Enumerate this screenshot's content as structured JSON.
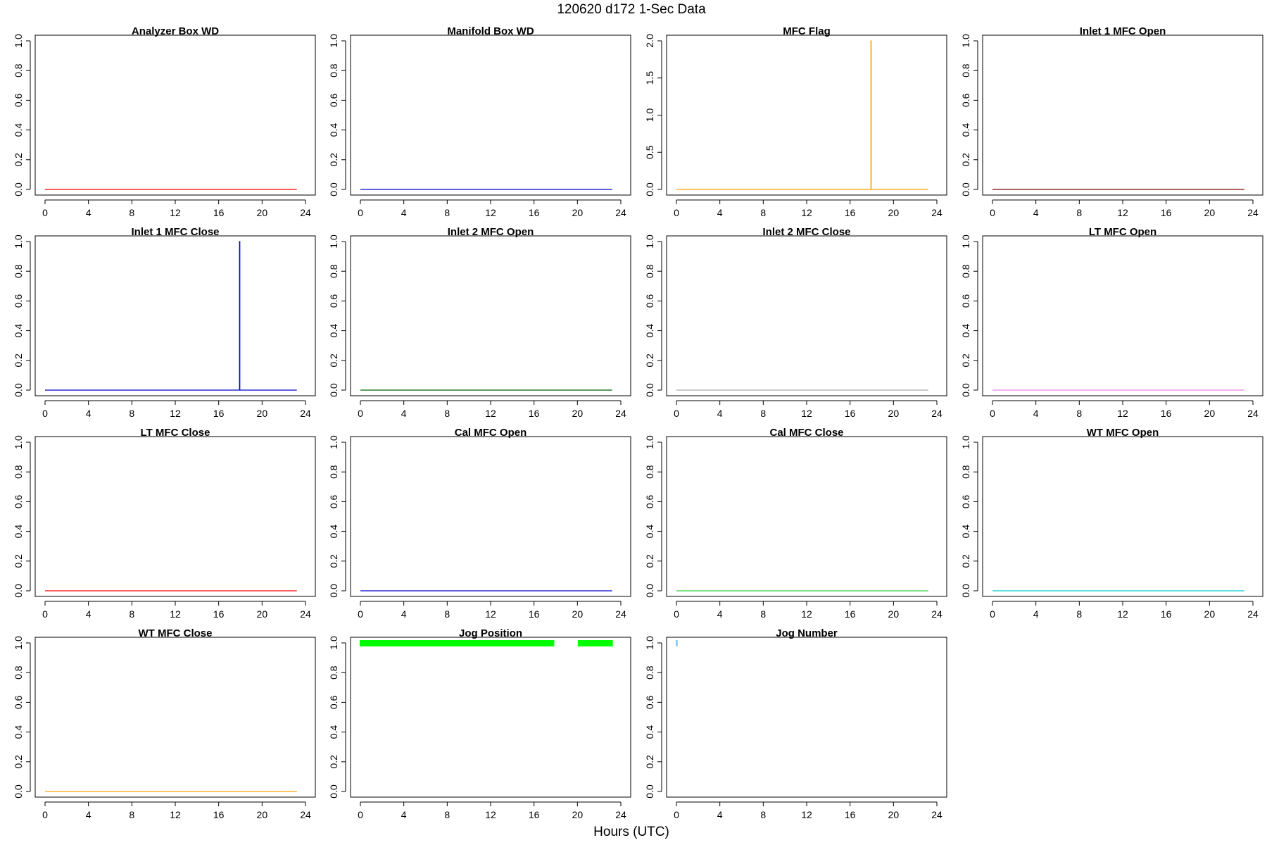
{
  "page": {
    "title": "120620   d172   1-Sec Data",
    "xlabel": "Hours (UTC)"
  },
  "chart_data": [
    {
      "type": "line",
      "title": "Analyzer Box WD",
      "color": "#ff0000",
      "xlim": [
        0,
        24
      ],
      "ylim": [
        0,
        1
      ],
      "xticks": [
        0,
        4,
        8,
        12,
        16,
        20,
        24
      ],
      "yticks": [
        0.0,
        0.2,
        0.4,
        0.6,
        0.8,
        1.0
      ],
      "series": [
        {
          "x": [
            0,
            23.2
          ],
          "y": [
            0,
            0
          ]
        }
      ]
    },
    {
      "type": "line",
      "title": "Manifold Box WD",
      "color": "#0000cd",
      "xlim": [
        0,
        24
      ],
      "ylim": [
        0,
        1
      ],
      "xticks": [
        0,
        4,
        8,
        12,
        16,
        20,
        24
      ],
      "yticks": [
        0.0,
        0.2,
        0.4,
        0.6,
        0.8,
        1.0
      ],
      "series": [
        {
          "x": [
            0,
            23.2
          ],
          "y": [
            0,
            0
          ]
        }
      ]
    },
    {
      "type": "line",
      "title": "MFC Flag",
      "color": "#ffa500",
      "xlim": [
        0,
        24
      ],
      "ylim": [
        0,
        2
      ],
      "xticks": [
        0,
        4,
        8,
        12,
        16,
        20,
        24
      ],
      "yticks": [
        0.0,
        0.5,
        1.0,
        1.5,
        2.0
      ],
      "series": [
        {
          "x": [
            0,
            17.92,
            17.92,
            17.95,
            17.95,
            23.2
          ],
          "y": [
            0,
            0,
            2,
            2,
            0,
            0
          ]
        }
      ]
    },
    {
      "type": "line",
      "title": "Inlet 1 MFC Open",
      "color": "#8b0000",
      "xlim": [
        0,
        24
      ],
      "ylim": [
        0,
        1
      ],
      "xticks": [
        0,
        4,
        8,
        12,
        16,
        20,
        24
      ],
      "yticks": [
        0.0,
        0.2,
        0.4,
        0.6,
        0.8,
        1.0
      ],
      "series": [
        {
          "x": [
            0,
            23.2
          ],
          "y": [
            0,
            0
          ]
        }
      ]
    },
    {
      "type": "line",
      "title": "Inlet 1 MFC Close",
      "color": "#0000cd",
      "xlim": [
        0,
        24
      ],
      "ylim": [
        0,
        1
      ],
      "xticks": [
        0,
        4,
        8,
        12,
        16,
        20,
        24
      ],
      "yticks": [
        0.0,
        0.2,
        0.4,
        0.6,
        0.8,
        1.0
      ],
      "series": [
        {
          "x": [
            0,
            17.92,
            17.92,
            17.95,
            17.95,
            23.2
          ],
          "y": [
            0,
            0,
            1,
            1,
            0,
            0
          ]
        }
      ]
    },
    {
      "type": "line",
      "title": "Inlet 2 MFC Open",
      "color": "#006400",
      "xlim": [
        0,
        24
      ],
      "ylim": [
        0,
        1
      ],
      "xticks": [
        0,
        4,
        8,
        12,
        16,
        20,
        24
      ],
      "yticks": [
        0.0,
        0.2,
        0.4,
        0.6,
        0.8,
        1.0
      ],
      "series": [
        {
          "x": [
            0,
            23.2
          ],
          "y": [
            0,
            0
          ]
        }
      ]
    },
    {
      "type": "line",
      "title": "Inlet 2 MFC Close",
      "color": "#a9a9a9",
      "xlim": [
        0,
        24
      ],
      "ylim": [
        0,
        1
      ],
      "xticks": [
        0,
        4,
        8,
        12,
        16,
        20,
        24
      ],
      "yticks": [
        0.0,
        0.2,
        0.4,
        0.6,
        0.8,
        1.0
      ],
      "series": [
        {
          "x": [
            0,
            23.2
          ],
          "y": [
            0,
            0
          ]
        }
      ]
    },
    {
      "type": "line",
      "title": "LT MFC Open",
      "color": "#ee82ee",
      "xlim": [
        0,
        24
      ],
      "ylim": [
        0,
        1
      ],
      "xticks": [
        0,
        4,
        8,
        12,
        16,
        20,
        24
      ],
      "yticks": [
        0.0,
        0.2,
        0.4,
        0.6,
        0.8,
        1.0
      ],
      "series": [
        {
          "x": [
            0,
            23.2
          ],
          "y": [
            0,
            0
          ]
        }
      ]
    },
    {
      "type": "line",
      "title": "LT MFC Close",
      "color": "#ff0000",
      "xlim": [
        0,
        24
      ],
      "ylim": [
        0,
        1
      ],
      "xticks": [
        0,
        4,
        8,
        12,
        16,
        20,
        24
      ],
      "yticks": [
        0.0,
        0.2,
        0.4,
        0.6,
        0.8,
        1.0
      ],
      "series": [
        {
          "x": [
            0,
            23.2
          ],
          "y": [
            0,
            0
          ]
        }
      ]
    },
    {
      "type": "line",
      "title": "Cal MFC Open",
      "color": "#0000cd",
      "xlim": [
        0,
        24
      ],
      "ylim": [
        0,
        1
      ],
      "xticks": [
        0,
        4,
        8,
        12,
        16,
        20,
        24
      ],
      "yticks": [
        0.0,
        0.2,
        0.4,
        0.6,
        0.8,
        1.0
      ],
      "series": [
        {
          "x": [
            0,
            23.2
          ],
          "y": [
            0,
            0
          ]
        }
      ]
    },
    {
      "type": "line",
      "title": "Cal MFC Close",
      "color": "#32cd32",
      "xlim": [
        0,
        24
      ],
      "ylim": [
        0,
        1
      ],
      "xticks": [
        0,
        4,
        8,
        12,
        16,
        20,
        24
      ],
      "yticks": [
        0.0,
        0.2,
        0.4,
        0.6,
        0.8,
        1.0
      ],
      "series": [
        {
          "x": [
            0,
            23.2
          ],
          "y": [
            0,
            0
          ]
        }
      ]
    },
    {
      "type": "line",
      "title": "WT MFC Open",
      "color": "#00ced1",
      "xlim": [
        0,
        24
      ],
      "ylim": [
        0,
        1
      ],
      "xticks": [
        0,
        4,
        8,
        12,
        16,
        20,
        24
      ],
      "yticks": [
        0.0,
        0.2,
        0.4,
        0.6,
        0.8,
        1.0
      ],
      "series": [
        {
          "x": [
            0,
            23.2
          ],
          "y": [
            0,
            0
          ]
        }
      ]
    },
    {
      "type": "line",
      "title": "WT MFC Close",
      "color": "#ffa500",
      "xlim": [
        0,
        24
      ],
      "ylim": [
        0,
        1
      ],
      "xticks": [
        0,
        4,
        8,
        12,
        16,
        20,
        24
      ],
      "yticks": [
        0.0,
        0.2,
        0.4,
        0.6,
        0.8,
        1.0
      ],
      "series": [
        {
          "x": [
            0,
            23.2
          ],
          "y": [
            0,
            0
          ]
        }
      ]
    },
    {
      "type": "scatter",
      "title": "Jog Position",
      "color": "#00ff00",
      "xlim": [
        0,
        24
      ],
      "ylim": [
        0,
        1
      ],
      "xticks": [
        0,
        4,
        8,
        12,
        16,
        20,
        24
      ],
      "yticks": [
        0.0,
        0.2,
        0.4,
        0.6,
        0.8,
        1.0
      ],
      "segments": [
        {
          "x": [
            0,
            17.8
          ],
          "y": 1.0
        },
        {
          "x": [
            20.1,
            23.2
          ],
          "y": 1.0
        }
      ]
    },
    {
      "type": "scatter",
      "title": "Jog Number",
      "color": "#87ceeb",
      "xlim": [
        0,
        24
      ],
      "ylim": [
        0,
        1
      ],
      "xticks": [
        0,
        4,
        8,
        12,
        16,
        20,
        24
      ],
      "yticks": [
        0.0,
        0.2,
        0.4,
        0.6,
        0.8,
        1.0
      ],
      "segments": [
        {
          "x": [
            0,
            0.05
          ],
          "y": 1.0
        }
      ]
    }
  ]
}
